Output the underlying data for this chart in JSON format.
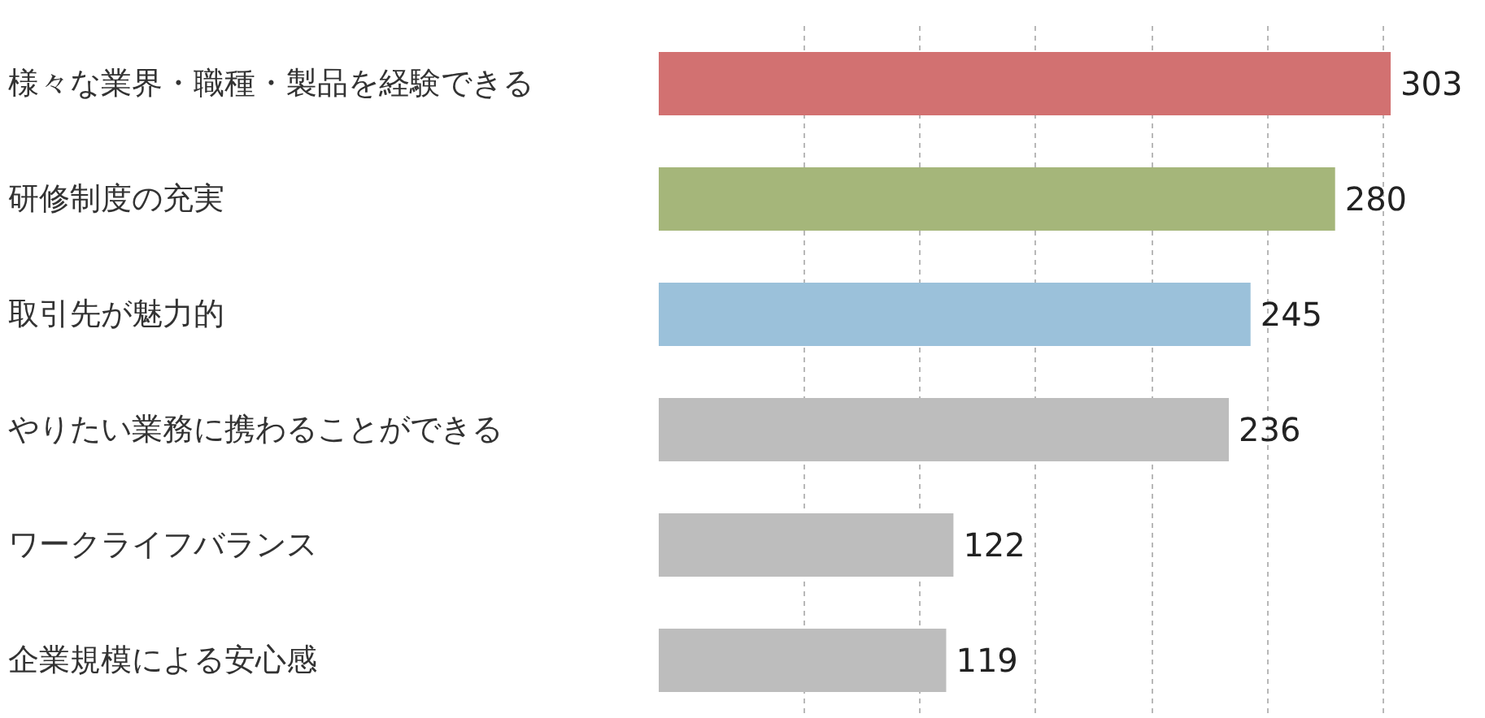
{
  "chart_data": {
    "type": "bar",
    "orientation": "horizontal",
    "categories": [
      "様々な業界・職種・製品を経験できる",
      "研修制度の充実",
      "取引先が魅力的",
      "やりたい業務に携わることができる",
      "ワークライフバランス",
      "企業規模による安心感"
    ],
    "values": [
      303,
      280,
      245,
      236,
      122,
      119
    ],
    "colors": [
      "#d27171",
      "#a5b67a",
      "#9bc1da",
      "#bdbdbd",
      "#bdbdbd",
      "#bdbdbd"
    ],
    "xticks": [
      {
        "value": 60,
        "label": null
      },
      {
        "value": 108,
        "label": null
      },
      {
        "value": 156,
        "label": null
      },
      {
        "value": 204,
        "label": null
      },
      {
        "value": 252,
        "label": null
      },
      {
        "value": 300,
        "label": null
      }
    ],
    "grid": "x",
    "tick_labels": "y",
    "data_labels": true
  }
}
